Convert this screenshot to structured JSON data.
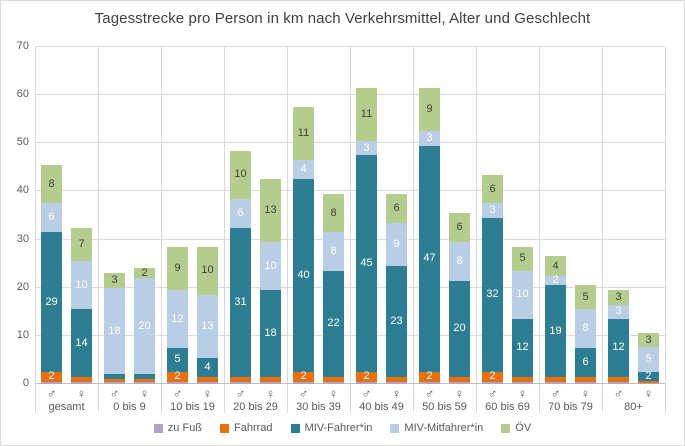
{
  "chart_data": {
    "type": "bar",
    "stacked": true,
    "title": "Tagesstrecke pro Person in km nach Verkehrsmittel, Alter und Geschlecht",
    "ylabel": "",
    "xlabel": "",
    "ylim": [
      0,
      70
    ],
    "y_ticks": [
      0,
      10,
      20,
      30,
      40,
      50,
      60,
      70
    ],
    "grid": true,
    "legend_position": "bottom",
    "series": [
      {
        "name": "zu Fuß",
        "color": "#b3a2c7",
        "label_color": "#ffffff"
      },
      {
        "name": "Fahrrad",
        "color": "#e8710f",
        "label_color": "#ffffff"
      },
      {
        "name": "MIV-Fahrer*in",
        "color": "#2e7e93",
        "label_color": "#ffffff"
      },
      {
        "name": "MIV-Mitfahrer*in",
        "color": "#b9cde4",
        "label_color": "#ffffff"
      },
      {
        "name": "ÖV",
        "color": "#b5cc8f",
        "label_color": "#404040"
      }
    ],
    "groups": [
      {
        "label": "gesamt",
        "bars": [
          {
            "sex": "♂",
            "values": [
              0.5,
              2,
              29,
              6,
              8
            ],
            "labels": [
              "",
              "2",
              "29",
              "6",
              "8"
            ]
          },
          {
            "sex": "♀",
            "values": [
              0.5,
              1,
              14,
              10,
              7
            ],
            "labels": [
              "",
              "",
              "14",
              "10",
              "7"
            ]
          }
        ]
      },
      {
        "label": "0 bis 9",
        "bars": [
          {
            "sex": "♂",
            "values": [
              0.5,
              0.5,
              1,
              18,
              3
            ],
            "labels": [
              "",
              "",
              "",
              "18",
              "3"
            ]
          },
          {
            "sex": "♀",
            "values": [
              0.5,
              0.5,
              1,
              20,
              2
            ],
            "labels": [
              "",
              "",
              "",
              "20",
              "2"
            ]
          }
        ]
      },
      {
        "label": "10 bis 19",
        "bars": [
          {
            "sex": "♂",
            "values": [
              0.5,
              2,
              5,
              12,
              9
            ],
            "labels": [
              "",
              "2",
              "5",
              "12",
              "9"
            ]
          },
          {
            "sex": "♀",
            "values": [
              0.5,
              1,
              4,
              13,
              10
            ],
            "labels": [
              "",
              "",
              "4",
              "13",
              "10"
            ]
          }
        ]
      },
      {
        "label": "20 bis 29",
        "bars": [
          {
            "sex": "♂",
            "values": [
              0.5,
              1,
              31,
              6,
              10
            ],
            "labels": [
              "",
              "",
              "31",
              "6",
              "10"
            ]
          },
          {
            "sex": "♀",
            "values": [
              0.5,
              1,
              18,
              10,
              13
            ],
            "labels": [
              "",
              "",
              "18",
              "10",
              "13"
            ]
          }
        ]
      },
      {
        "label": "30 bis 39",
        "bars": [
          {
            "sex": "♂",
            "values": [
              0.5,
              2,
              40,
              4,
              11
            ],
            "labels": [
              "",
              "2",
              "40",
              "4",
              "11"
            ]
          },
          {
            "sex": "♀",
            "values": [
              0.5,
              1,
              22,
              8,
              8
            ],
            "labels": [
              "",
              "",
              "22",
              "8",
              "8"
            ]
          }
        ]
      },
      {
        "label": "40 bis 49",
        "bars": [
          {
            "sex": "♂",
            "values": [
              0.5,
              2,
              45,
              3,
              11
            ],
            "labels": [
              "",
              "2",
              "45",
              "3",
              "11"
            ]
          },
          {
            "sex": "♀",
            "values": [
              0.5,
              1,
              23,
              9,
              6
            ],
            "labels": [
              "",
              "",
              "23",
              "9",
              "6"
            ]
          }
        ]
      },
      {
        "label": "50 bis 59",
        "bars": [
          {
            "sex": "♂",
            "values": [
              0.5,
              2,
              47,
              3,
              9
            ],
            "labels": [
              "",
              "2",
              "47",
              "3",
              "9"
            ]
          },
          {
            "sex": "♀",
            "values": [
              0.5,
              1,
              20,
              8,
              6
            ],
            "labels": [
              "",
              "",
              "20",
              "8",
              "6"
            ]
          }
        ]
      },
      {
        "label": "60 bis 69",
        "bars": [
          {
            "sex": "♂",
            "values": [
              0.5,
              2,
              32,
              3,
              6
            ],
            "labels": [
              "",
              "2",
              "32",
              "3",
              "6"
            ]
          },
          {
            "sex": "♀",
            "values": [
              0.5,
              1,
              12,
              10,
              5
            ],
            "labels": [
              "",
              "",
              "12",
              "10",
              "5"
            ]
          }
        ]
      },
      {
        "label": "70 bis 79",
        "bars": [
          {
            "sex": "♂",
            "values": [
              0.5,
              1,
              19,
              2,
              4
            ],
            "labels": [
              "",
              "",
              "19",
              "2",
              "4"
            ]
          },
          {
            "sex": "♀",
            "values": [
              0.5,
              1,
              6,
              8,
              5
            ],
            "labels": [
              "",
              "",
              "6",
              "8",
              "5"
            ]
          }
        ]
      },
      {
        "label": "80+",
        "bars": [
          {
            "sex": "♂",
            "values": [
              0.5,
              1,
              12,
              3,
              3
            ],
            "labels": [
              "",
              "",
              "12",
              "3",
              "3"
            ]
          },
          {
            "sex": "♀",
            "values": [
              0.3,
              0.3,
              2,
              5,
              3
            ],
            "labels": [
              "",
              "",
              "2",
              "5",
              "3"
            ]
          }
        ]
      }
    ],
    "colors": {
      "gridline": "#d9d9d9",
      "axis_line": "#bfbfbf",
      "axis_text": "#595959",
      "title_text": "#404040"
    }
  }
}
